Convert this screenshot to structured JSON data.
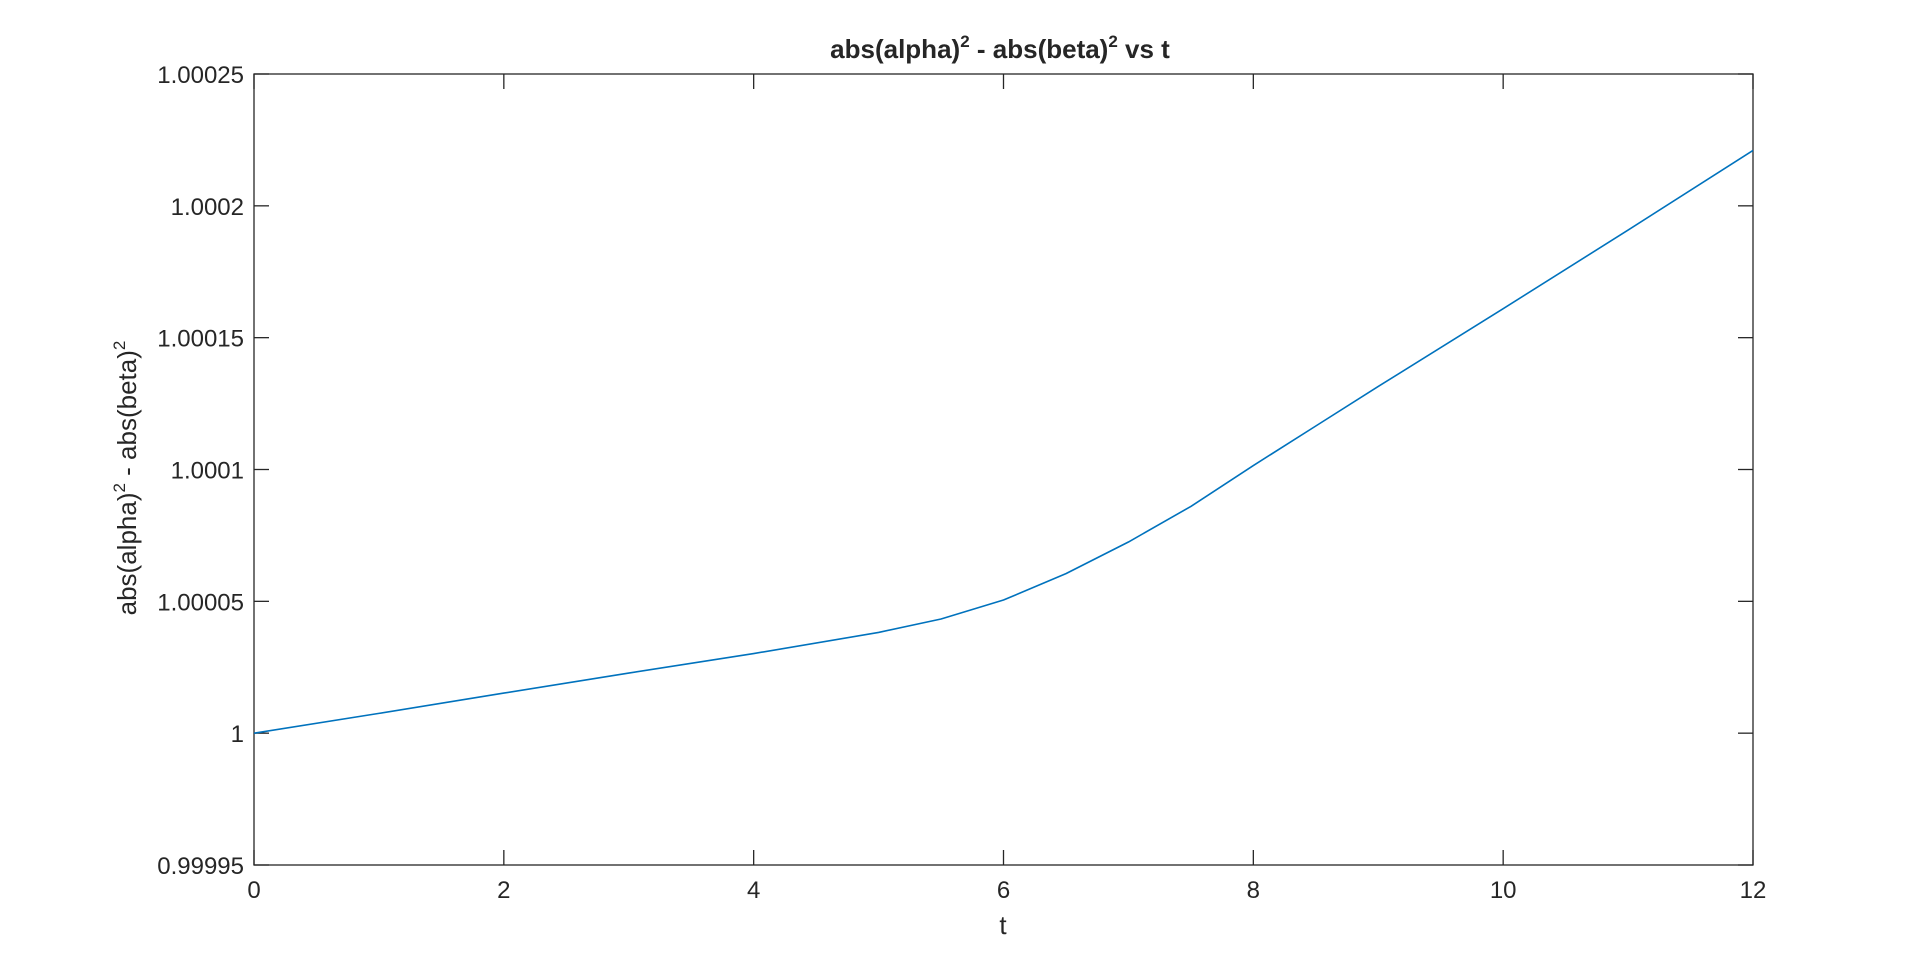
{
  "chart_data": {
    "type": "line",
    "title": {
      "base1": "abs(alpha)",
      "sup1": "2",
      "base2": " - abs(beta)",
      "sup2": "2",
      "tail": " vs t"
    },
    "xlabel": "t",
    "ylabel": {
      "base1": "abs(alpha)",
      "sup1": "2",
      "base2": " - abs(beta)",
      "sup2": "2"
    },
    "xlim": [
      0,
      12
    ],
    "ylim": [
      0.99995,
      1.00025
    ],
    "x_ticks": [
      0,
      2,
      4,
      6,
      8,
      10,
      12
    ],
    "x_tick_labels": [
      "0",
      "2",
      "4",
      "6",
      "8",
      "10",
      "12"
    ],
    "y_ticks": [
      0.99995,
      1,
      1.00005,
      1.0001,
      1.00015,
      1.0002,
      1.00025
    ],
    "y_tick_labels": [
      "0.99995",
      "1",
      "1.00005",
      "1.0001",
      "1.00015",
      "1.0002",
      "1.00025"
    ],
    "grid": false,
    "line_color": "#0072BD",
    "series": [
      {
        "x": [
          0,
          1,
          2,
          3,
          4,
          5,
          5.5,
          6,
          6.5,
          7,
          7.5,
          8,
          8.5,
          9,
          10,
          11,
          12
        ],
        "values": [
          1.0,
          1.0000075,
          1.0000152,
          1.0000228,
          1.0000302,
          1.0000382,
          1.0000433,
          1.0000505,
          1.0000605,
          1.0000725,
          1.000086,
          1.0001015,
          1.0001165,
          1.0001315,
          1.000161,
          1.0001908,
          1.000221
        ]
      }
    ]
  }
}
